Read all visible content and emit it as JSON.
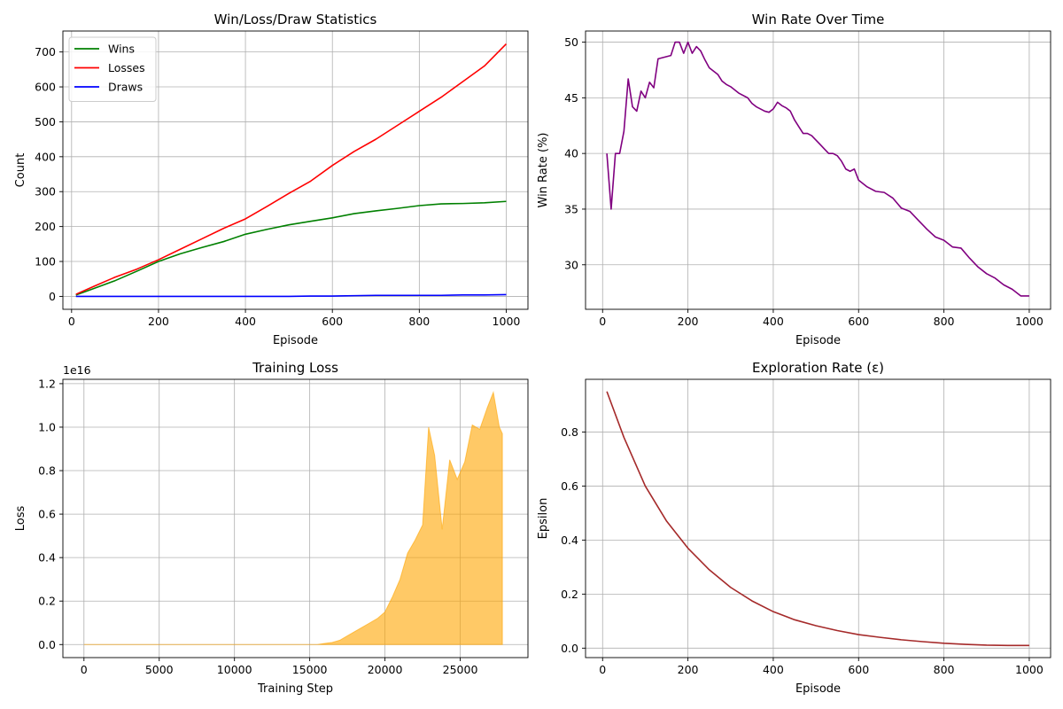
{
  "chart_data": [
    {
      "type": "line",
      "title": "Win/Loss/Draw Statistics",
      "xlabel": "Episode",
      "ylabel": "Count",
      "xlim": [
        -20,
        1050
      ],
      "ylim": [
        -37,
        760
      ],
      "xticks": [
        0,
        200,
        400,
        600,
        800,
        1000
      ],
      "yticks": [
        0,
        100,
        200,
        300,
        400,
        500,
        600,
        700
      ],
      "grid": true,
      "legend": "top-left",
      "series": [
        {
          "name": "Wins",
          "color": "#008000",
          "x": [
            10,
            50,
            100,
            150,
            200,
            250,
            300,
            350,
            400,
            450,
            500,
            550,
            600,
            650,
            700,
            750,
            800,
            850,
            900,
            950,
            1000
          ],
          "y": [
            4,
            22,
            45,
            72,
            100,
            122,
            140,
            157,
            178,
            192,
            205,
            215,
            225,
            237,
            245,
            252,
            260,
            265,
            266,
            268,
            272
          ]
        },
        {
          "name": "Losses",
          "color": "#ff0000",
          "x": [
            10,
            50,
            100,
            150,
            200,
            250,
            300,
            350,
            400,
            450,
            500,
            550,
            600,
            650,
            700,
            750,
            800,
            850,
            900,
            950,
            1000
          ],
          "y": [
            6,
            28,
            55,
            78,
            105,
            135,
            165,
            195,
            222,
            258,
            295,
            330,
            375,
            415,
            450,
            490,
            530,
            570,
            615,
            660,
            723
          ]
        },
        {
          "name": "Draws",
          "color": "#0000ff",
          "x": [
            10,
            100,
            200,
            300,
            400,
            500,
            550,
            600,
            650,
            700,
            750,
            800,
            850,
            900,
            950,
            1000
          ],
          "y": [
            0,
            0,
            0,
            0,
            0,
            0,
            1,
            1,
            2,
            3,
            3,
            3,
            3,
            4,
            4,
            5
          ]
        }
      ]
    },
    {
      "type": "line",
      "title": "Win Rate Over Time",
      "xlabel": "Episode",
      "ylabel": "Win Rate (%)",
      "xlim": [
        -40,
        1050
      ],
      "ylim": [
        26,
        51
      ],
      "xticks": [
        0,
        200,
        400,
        600,
        800,
        1000
      ],
      "yticks": [
        30,
        35,
        40,
        45,
        50
      ],
      "grid": true,
      "series": [
        {
          "color": "#800080",
          "x": [
            10,
            20,
            30,
            40,
            50,
            60,
            70,
            80,
            90,
            100,
            110,
            120,
            130,
            140,
            150,
            160,
            170,
            180,
            190,
            200,
            210,
            220,
            230,
            240,
            250,
            260,
            270,
            280,
            290,
            300,
            320,
            340,
            350,
            360,
            370,
            380,
            390,
            400,
            410,
            420,
            430,
            440,
            450,
            460,
            470,
            480,
            490,
            500,
            510,
            520,
            530,
            540,
            550,
            560,
            570,
            580,
            590,
            600,
            620,
            640,
            660,
            680,
            700,
            720,
            740,
            760,
            780,
            800,
            820,
            840,
            860,
            880,
            900,
            920,
            940,
            960,
            980,
            1000
          ],
          "y": [
            40,
            35,
            40,
            40,
            42,
            46.7,
            44.2,
            43.8,
            45.6,
            45,
            46.4,
            45.9,
            48.5,
            48.6,
            48.7,
            48.8,
            50,
            50,
            49,
            50,
            49,
            49.6,
            49.2,
            48.4,
            47.7,
            47.4,
            47.1,
            46.5,
            46.2,
            46,
            45.4,
            45,
            44.5,
            44.2,
            44,
            43.8,
            43.7,
            44,
            44.6,
            44.3,
            44.1,
            43.8,
            43,
            42.4,
            41.8,
            41.8,
            41.6,
            41.2,
            40.8,
            40.4,
            40,
            40,
            39.8,
            39.3,
            38.6,
            38.4,
            38.6,
            37.6,
            37,
            36.6,
            36.5,
            36,
            35.1,
            34.8,
            34,
            33.2,
            32.5,
            32.2,
            31.6,
            31.5,
            30.6,
            29.8,
            29.2,
            28.8,
            28.2,
            27.8,
            27.2,
            27.2
          ]
        }
      ]
    },
    {
      "type": "area",
      "title": "Training Loss",
      "xlabel": "Training Step",
      "ylabel": "Loss",
      "offset_label": "1e16",
      "xlim": [
        -1400,
        29500
      ],
      "ylim": [
        -0.06,
        1.22
      ],
      "xticks": [
        0,
        5000,
        10000,
        15000,
        20000,
        25000
      ],
      "yticks": [
        0,
        0.2,
        0.4,
        0.6,
        0.8,
        1.0,
        1.2
      ],
      "ytick_labels": [
        "0.0",
        "0.2",
        "0.4",
        "0.6",
        "0.8",
        "1.0",
        "1.2"
      ],
      "grid": true,
      "series": [
        {
          "color": "#ffa500",
          "x": [
            0,
            15500,
            16000,
            16500,
            17000,
            17500,
            18000,
            18500,
            19000,
            19500,
            20000,
            20500,
            21000,
            21500,
            22000,
            22500,
            22900,
            23300,
            23800,
            24300,
            24800,
            25300,
            25800,
            26300,
            26800,
            27200,
            27600,
            27800
          ],
          "y": [
            0,
            0,
            0.005,
            0.01,
            0.02,
            0.04,
            0.06,
            0.08,
            0.1,
            0.12,
            0.15,
            0.22,
            0.3,
            0.42,
            0.48,
            0.55,
            1.0,
            0.87,
            0.53,
            0.85,
            0.76,
            0.84,
            1.01,
            0.99,
            1.09,
            1.16,
            1.0,
            0.97
          ]
        }
      ]
    },
    {
      "type": "line",
      "title": "Exploration Rate (ε)",
      "xlabel": "Episode",
      "ylabel": "Epsilon",
      "xlim": [
        -40,
        1050
      ],
      "ylim": [
        -0.035,
        0.995
      ],
      "xticks": [
        0,
        200,
        400,
        600,
        800,
        1000
      ],
      "yticks": [
        0,
        0.2,
        0.4,
        0.6,
        0.8
      ],
      "ytick_labels": [
        "0.0",
        "0.2",
        "0.4",
        "0.6",
        "0.8"
      ],
      "grid": true,
      "series": [
        {
          "color": "#a52a2a",
          "x": [
            10,
            50,
            100,
            150,
            200,
            250,
            300,
            350,
            400,
            450,
            500,
            550,
            600,
            650,
            700,
            750,
            800,
            850,
            900,
            950,
            1000
          ],
          "y": [
            0.95,
            0.78,
            0.6,
            0.47,
            0.37,
            0.29,
            0.225,
            0.175,
            0.135,
            0.105,
            0.083,
            0.065,
            0.05,
            0.04,
            0.031,
            0.024,
            0.018,
            0.014,
            0.011,
            0.01,
            0.01
          ]
        }
      ]
    }
  ]
}
